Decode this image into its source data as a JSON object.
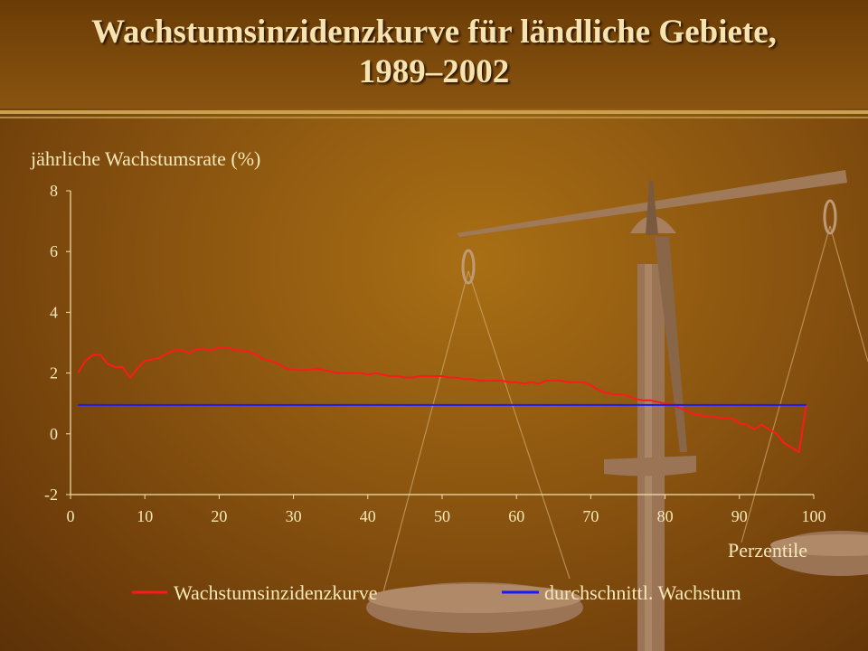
{
  "slide": {
    "title_line1": "Wachstumsinzidenzkurve für ländliche Gebiete,",
    "title_line2": "1989–2002"
  },
  "colors": {
    "series_1": "#ff1a1a",
    "series_2": "#1a1aff",
    "text": "#f7e8b8",
    "axis": "#f3e2ae"
  },
  "chart_data": {
    "type": "line",
    "ylabel": "jährliche Wachstumsrate (%)",
    "xlabel": "Perzentile",
    "xlim": [
      0,
      100
    ],
    "ylim": [
      -2,
      8
    ],
    "xticks": [
      0,
      10,
      20,
      30,
      40,
      50,
      60,
      70,
      80,
      90,
      100
    ],
    "yticks": [
      -2,
      0,
      2,
      4,
      6,
      8
    ],
    "grid": false,
    "legend_position": "bottom",
    "series": [
      {
        "name": "Wachstumsinzidenzkurve",
        "x": [
          1,
          2,
          3,
          4,
          5,
          6,
          7,
          8,
          9,
          10,
          11,
          12,
          13,
          14,
          15,
          16,
          17,
          18,
          19,
          20,
          21,
          22,
          23,
          24,
          25,
          26,
          27,
          28,
          29,
          30,
          31,
          32,
          33,
          34,
          35,
          36,
          37,
          38,
          39,
          40,
          41,
          42,
          43,
          44,
          45,
          46,
          47,
          48,
          49,
          50,
          51,
          52,
          53,
          54,
          55,
          56,
          57,
          58,
          59,
          60,
          61,
          62,
          63,
          64,
          65,
          66,
          67,
          68,
          69,
          70,
          71,
          72,
          73,
          74,
          75,
          76,
          77,
          78,
          79,
          80,
          81,
          82,
          83,
          84,
          85,
          86,
          87,
          88,
          89,
          90,
          91,
          92,
          93,
          94,
          95,
          96,
          97,
          98,
          99
        ],
        "values": [
          2.0,
          2.4,
          2.6,
          2.6,
          2.3,
          2.2,
          2.2,
          1.85,
          2.15,
          2.4,
          2.45,
          2.5,
          2.65,
          2.75,
          2.75,
          2.65,
          2.8,
          2.8,
          2.75,
          2.85,
          2.85,
          2.75,
          2.75,
          2.7,
          2.6,
          2.45,
          2.4,
          2.3,
          2.15,
          2.1,
          2.1,
          2.1,
          2.15,
          2.1,
          2.05,
          2.0,
          2.0,
          2.0,
          2.0,
          1.95,
          2.0,
          1.95,
          1.9,
          1.9,
          1.85,
          1.85,
          1.9,
          1.9,
          1.9,
          1.9,
          1.85,
          1.85,
          1.8,
          1.8,
          1.75,
          1.75,
          1.75,
          1.75,
          1.7,
          1.7,
          1.65,
          1.7,
          1.65,
          1.75,
          1.75,
          1.75,
          1.7,
          1.7,
          1.7,
          1.6,
          1.45,
          1.35,
          1.3,
          1.3,
          1.25,
          1.15,
          1.1,
          1.1,
          1.05,
          1.0,
          0.95,
          0.85,
          0.75,
          0.65,
          0.6,
          0.55,
          0.55,
          0.5,
          0.5,
          0.35,
          0.3,
          0.15,
          0.3,
          0.15,
          0.0,
          -0.3,
          -0.45,
          -0.6,
          0.95
        ]
      },
      {
        "name": "durchschnittl. Wachstum",
        "x": [
          1,
          99
        ],
        "values": [
          0.95,
          0.95
        ]
      }
    ]
  }
}
